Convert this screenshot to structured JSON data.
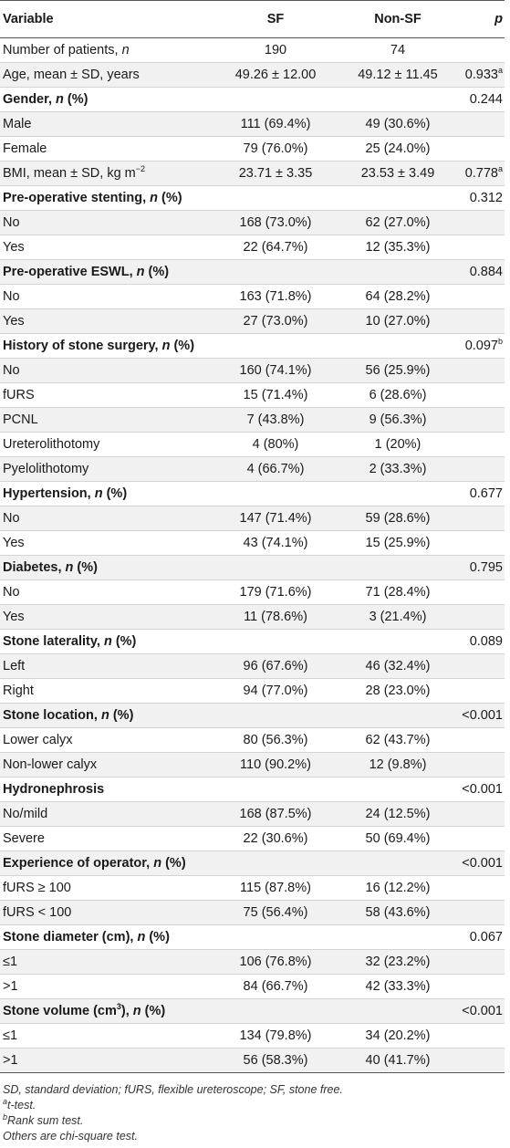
{
  "header": {
    "variable": "Variable",
    "sf": "SF",
    "non_sf": "Non-SF",
    "p": "p"
  },
  "rows": [
    {
      "label": "Number of patients, ",
      "label_italic": "n",
      "sf": "190",
      "non_sf": "74",
      "p": ""
    },
    {
      "label": "Age, mean ± SD, years",
      "sf": "49.26 ± 12.00",
      "non_sf": "49.12 ± 11.45",
      "p": "0.933",
      "p_sup": "a"
    },
    {
      "section": true,
      "label": "Gender, ",
      "label_italic": "n",
      "label_suffix": " (%)",
      "p": "0.244"
    },
    {
      "label": "Male",
      "sf": "111 (69.4%)",
      "non_sf": "49 (30.6%)",
      "p": ""
    },
    {
      "label": "Female",
      "sf": "79 (76.0%)",
      "non_sf": "25 (24.0%)",
      "p": ""
    },
    {
      "label": "BMI, mean ± SD, kg m",
      "label_sup": "−2",
      "sf": "23.71 ± 3.35",
      "non_sf": "23.53 ± 3.49",
      "p": "0.778",
      "p_sup": "a"
    },
    {
      "section": true,
      "label": "Pre-operative stenting, ",
      "label_italic": "n",
      "label_suffix": " (%)",
      "p": "0.312"
    },
    {
      "label": "No",
      "sf": "168 (73.0%)",
      "non_sf": "62 (27.0%)",
      "p": ""
    },
    {
      "label": "Yes",
      "sf": "22 (64.7%)",
      "non_sf": "12 (35.3%)",
      "p": ""
    },
    {
      "section": true,
      "label": "Pre-operative ESWL, ",
      "label_italic": "n",
      "label_suffix": " (%)",
      "p": "0.884"
    },
    {
      "label": "No",
      "sf": "163 (71.8%)",
      "non_sf": "64 (28.2%)",
      "p": ""
    },
    {
      "label": "Yes",
      "sf": "27 (73.0%)",
      "non_sf": "10 (27.0%)",
      "p": ""
    },
    {
      "section": true,
      "label": "History of stone surgery, ",
      "label_italic": "n",
      "label_suffix": " (%)",
      "p": "0.097",
      "p_sup": "b"
    },
    {
      "label": "No",
      "sf": "160 (74.1%)",
      "non_sf": "56 (25.9%)",
      "p": ""
    },
    {
      "label": "fURS",
      "sf": "15 (71.4%)",
      "non_sf": "6 (28.6%)",
      "p": ""
    },
    {
      "label": "PCNL",
      "sf": "7 (43.8%)",
      "non_sf": "9 (56.3%)",
      "p": ""
    },
    {
      "label": "Ureterolithotomy",
      "sf": "4 (80%)",
      "non_sf": "1 (20%)",
      "p": ""
    },
    {
      "label": "Pyelolithotomy",
      "sf": "4 (66.7%)",
      "non_sf": "2 (33.3%)",
      "p": ""
    },
    {
      "section": true,
      "label": "Hypertension, ",
      "label_italic": "n",
      "label_suffix": " (%)",
      "p": "0.677"
    },
    {
      "label": "No",
      "sf": "147 (71.4%)",
      "non_sf": "59 (28.6%)",
      "p": ""
    },
    {
      "label": "Yes",
      "sf": "43 (74.1%)",
      "non_sf": "15 (25.9%)",
      "p": ""
    },
    {
      "section": true,
      "label": "Diabetes, ",
      "label_italic": "n",
      "label_suffix": " (%)",
      "p": "0.795"
    },
    {
      "label": "No",
      "sf": "179 (71.6%)",
      "non_sf": "71 (28.4%)",
      "p": ""
    },
    {
      "label": "Yes",
      "sf": "11 (78.6%)",
      "non_sf": "3 (21.4%)",
      "p": ""
    },
    {
      "section": true,
      "label": "Stone laterality, ",
      "label_italic": "n",
      "label_suffix": " (%)",
      "p": "0.089"
    },
    {
      "label": "Left",
      "sf": "96 (67.6%)",
      "non_sf": "46 (32.4%)",
      "p": ""
    },
    {
      "label": "Right",
      "sf": "94 (77.0%)",
      "non_sf": "28 (23.0%)",
      "p": ""
    },
    {
      "section": true,
      "label": "Stone location, ",
      "label_italic": "n",
      "label_suffix": " (%)",
      "p": "<0.001"
    },
    {
      "label": "Lower calyx",
      "sf": "80 (56.3%)",
      "non_sf": "62 (43.7%)",
      "p": ""
    },
    {
      "label": "Non-lower calyx",
      "sf": "110 (90.2%)",
      "non_sf": "12 (9.8%)",
      "p": ""
    },
    {
      "section": true,
      "label": "Hydronephrosis",
      "p": "<0.001"
    },
    {
      "label": "No/mild",
      "sf": "168 (87.5%)",
      "non_sf": "24 (12.5%)",
      "p": ""
    },
    {
      "label": "Severe",
      "sf": "22 (30.6%)",
      "non_sf": "50 (69.4%)",
      "p": ""
    },
    {
      "section": true,
      "label": "Experience of operator, ",
      "label_italic": "n",
      "label_suffix": " (%)",
      "p": "<0.001"
    },
    {
      "label": "fURS ≥ 100",
      "sf": "115 (87.8%)",
      "non_sf": "16 (12.2%)",
      "p": ""
    },
    {
      "label": "fURS < 100",
      "sf": "75 (56.4%)",
      "non_sf": "58 (43.6%)",
      "p": ""
    },
    {
      "section": true,
      "label": "Stone diameter (cm), ",
      "label_italic": "n",
      "label_suffix": " (%)",
      "p": "0.067"
    },
    {
      "label": "≤1",
      "sf": "106 (76.8%)",
      "non_sf": "32 (23.2%)",
      "p": ""
    },
    {
      "label": ">1",
      "sf": "84 (66.7%)",
      "non_sf": "42 (33.3%)",
      "p": ""
    },
    {
      "section": true,
      "label": "Stone volume (cm",
      "label_sup": "3",
      "label_after_sup": "), ",
      "label_italic": "n",
      "label_suffix": " (%)",
      "p": "<0.001"
    },
    {
      "label": "≤1",
      "sf": "134 (79.8%)",
      "non_sf": "34 (20.2%)",
      "p": ""
    },
    {
      "label": ">1",
      "sf": "56 (58.3%)",
      "non_sf": "40 (41.7%)",
      "p": ""
    }
  ],
  "footnotes": {
    "abbrev": "SD, standard deviation; fURS, flexible ureteroscope; SF, stone free.",
    "a_mark": "a",
    "a_text": "t-test.",
    "b_mark": "b",
    "b_text": "Rank sum test.",
    "other": "Others are chi-square test."
  }
}
